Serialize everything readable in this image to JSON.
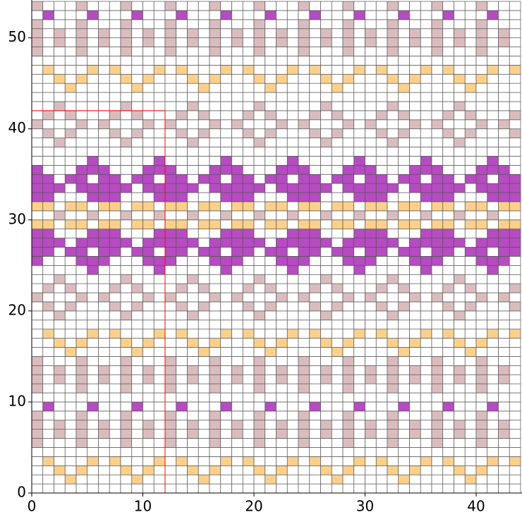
{
  "chart_data": {
    "type": "grid",
    "xlim": [
      0,
      44
    ],
    "ylim": [
      0,
      54
    ],
    "xticks": [
      0,
      10,
      20,
      30,
      40
    ],
    "yticks": [
      0,
      10,
      20,
      30,
      40,
      50
    ],
    "palette": {
      ".": "#ffffff",
      "o": "#fdd08a",
      "p": "#dbbcbe",
      "m": "#b64bc2"
    },
    "grid_color": "#555555",
    "repeat_box": {
      "xlim": [
        0,
        12
      ],
      "ylim": [
        0,
        42
      ],
      "color": "#ff0000"
    },
    "rows": [
      "............................................",
      "...o.....o.....o.....o.....o.....o.....o....",
      "..o.o...o.o...o.o...o.o...o.o...o.o...o.o...",
      ".o...o.o...o.o...o.o...o.o...o.o...o.o...o.o",
      "............................................",
      "p...p...p...p...p...p...p...p...p...p...p...",
      "p.p.p.p.p.p.p.p.p.p.p.p.p.p.p.p.p.p.p.p.p.p.",
      "p.p.p.p.p.p.p.p.p.p.p.p.p.p.p.p.p.p.p.p.p.p.",
      "p...p...p...p...p...p...p...p...p...p...p...",
      ".m...m...m...m...m...m...m...m...m...m...m..",
      "............................................",
      "p...p...p...p...p...p...p...p...p...p...p...",
      "p.p.p.p.p.p.p.p.p.p.p.p.p.p.p.p.p.p.p.p.p.p.",
      "p.p.p.p.p.p.p.p.p.p.p.p.p.p.p.p.p.p.p.p.p.p.",
      "p...p...p...p...p...p...p...p...p...p...p...",
      "...o.....o.....o.....o.....o.....o.....o....",
      "..o.o...o.o...o.o...o.o...o.o...o.o...o.o...",
      ".o...o.o...o.o...o.o...o.o...o.o...o.o...o.o",
      "............................................",
      "..p.....p.....p.....p.....p.....p.....p.....",
      ".p.p...p.p...p.p...p.p...p.p...p.p...p.p...p",
      "p...p.p...p.p...p.p...p.p...p.p...p.p...p.p.",
      ".p.p...p.p...p.p...p.p...p.p...p.p...p.p...p",
      "..p.....p.....p.....p.....p.....p.....p.....",
      ".....m.....m.....m.....m.....m.....m.....m..",
      "m...mmm...mmm...mmm...mmm...mmm...mmm...mmm.",
      "mm.mm.mm.mm.mm.mm.mm.mm.mm.mm.mm.mm.mm.mm.mm",
      "mmm.mmmmm.mmmmm.mmmmm.mmmmm.mmmmm.mmmmm.mmmm",
      "mm...mmm...mmm...mmm...mmm...mmm...mmm...mmm",
      "oo.oo.oo.oo.oo.oo.oo.oo.oo.oo.oo.oo.oo.oo.oo",
      "..p..p..p..p..p..p..p..p..p..p..p..p..p..p..",
      "oo.oo.oo.oo.oo.oo.oo.oo.oo.oo.oo.oo.oo.oo.oo",
      "mm...mmm...mmm...mmm...mmm...mmm...mmm...mmm",
      "mmm.mmmmm.mmmmm.mmmmm.mmmmm.mmmmm.mmmmm.mmmm",
      "mm.mm.mm.mm.mm.mm.mm.mm.mm.mm.mm.mm.mm.mm.mm",
      "m...mmm...mmm...mmm...mmm...mmm...mmm...mmm.",
      ".....m.....m.....m.....m.....m.....m.....m..",
      "............................................",
      "..p.....p.....p.....p.....p.....p.....p.....",
      ".p.p...p.p...p.p...p.p...p.p...p.p...p.p...p",
      "p...p.p...p.p...p.p...p.p...p.p...p.p...p.p.",
      ".p.p...p.p...p.p...p.p...p.p...p.p...p.p...p",
      "..p.....p.....p.....p.....p.....p.....p.....",
      "............................................",
      "...o.....o.....o.....o.....o.....o.....o....",
      "..o.o...o.o...o.o...o.o...o.o...o.o...o.o...",
      ".o...o.o...o.o...o.o...o.o...o.o...o.o...o.o",
      "............................................",
      "p...p...p...p...p...p...p...p...p...p...p...",
      "p.p.p.p.p.p.p.p.p.p.p.p.p.p.p.p.p.p.p.p.p.p.",
      "p.p.p.p.p.p.p.p.p.p.p.p.p.p.p.p.p.p.p.p.p.p.",
      "p...p...p...p...p...p...p...p...p...p...p...",
      ".m...m...m...m...m...m...m...m...m...m...m..",
      "p...p...p...p...p...p...p...p...p...p...p..."
    ]
  }
}
